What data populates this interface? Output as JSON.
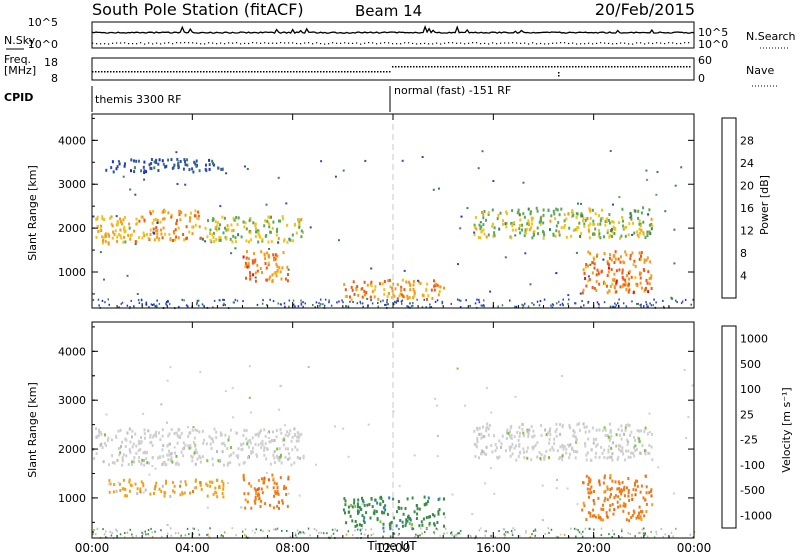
{
  "header": {
    "station": "South Pole Station (fitACF)",
    "beam": "Beam 14",
    "date": "20/Feb/2015"
  },
  "summary": {
    "nsky_label": "N.Sky",
    "nsearch_label": "N.Search",
    "freq_label_1": "Freq.",
    "freq_label_2": "[MHz]",
    "nave_label": "Nave",
    "cpid_label": "CPID",
    "left_top_ticks": [
      "10^5",
      "10^0"
    ],
    "right_top_ticks": [
      "10^5",
      "10^0"
    ],
    "freq_ticks": [
      "18",
      "8"
    ],
    "nave_ticks": [
      "60",
      "0"
    ],
    "cpid_segments": [
      "themis 3300 RF",
      "normal (fast) -151 RF"
    ]
  },
  "colors": {
    "power": [
      "#1a2cd6",
      "#2f4fa8",
      "#3f7f5a",
      "#58a85a",
      "#f2c21c",
      "#f59a1a",
      "#ee5a1a",
      "#e81010"
    ],
    "velocity": [
      "#1b3ea6",
      "#2f7fb0",
      "#3a8a48",
      "#7cc242",
      "#cfcfcf",
      "#bdbdbd",
      "#f0a21c",
      "#f07a1a",
      "#ee5a16",
      "#e81010"
    ],
    "grid": "#c8c8c8"
  },
  "chart_data": [
    {
      "type": "heatmap",
      "title": "",
      "xlabel": "",
      "ylabel": "Slant Range [km]",
      "x_ticks": [
        "00:00",
        "04:00",
        "08:00",
        "12:00",
        "16:00",
        "20:00",
        "00:00"
      ],
      "y_ticks": [
        1000,
        2000,
        3000,
        4000
      ],
      "ylim": [
        180,
        4600
      ],
      "colorbar": {
        "label": "Power [dB]",
        "ticks": [
          4,
          8,
          12,
          16,
          20,
          24,
          28
        ],
        "range": [
          0,
          32
        ]
      },
      "regions": [
        {
          "t": [
            0.0,
            2.2
          ],
          "r": [
            1650,
            2300
          ],
          "value": 20
        },
        {
          "t": [
            2.2,
            4.3
          ],
          "r": [
            1750,
            2450
          ],
          "value": 22
        },
        {
          "t": [
            4.3,
            8.4
          ],
          "r": [
            1700,
            2300
          ],
          "value": 16
        },
        {
          "t": [
            6.0,
            7.8
          ],
          "r": [
            800,
            1500
          ],
          "value": 24
        },
        {
          "t": [
            10.0,
            14.0
          ],
          "r": [
            400,
            850
          ],
          "value": 22
        },
        {
          "t": [
            15.2,
            22.3
          ],
          "r": [
            1800,
            2500
          ],
          "value": 16
        },
        {
          "t": [
            19.5,
            22.3
          ],
          "r": [
            550,
            1500
          ],
          "value": 24
        },
        {
          "t": [
            0.5,
            5.2
          ],
          "r": [
            3300,
            3600
          ],
          "value": 6
        }
      ]
    },
    {
      "type": "heatmap",
      "title": "",
      "xlabel": "Time UT",
      "ylabel": "Slant Range [km]",
      "x_ticks": [
        "00:00",
        "04:00",
        "08:00",
        "12:00",
        "16:00",
        "20:00",
        "00:00"
      ],
      "y_ticks": [
        1000,
        2000,
        3000,
        4000
      ],
      "ylim": [
        180,
        4600
      ],
      "colorbar": {
        "label": "Velocity [m s⁻¹]",
        "ticks": [
          1000,
          500,
          100,
          25,
          -25,
          -100,
          -500,
          -1000
        ]
      },
      "regions": [
        {
          "t": [
            0.0,
            8.4
          ],
          "r": [
            1700,
            2450
          ],
          "value": 0
        },
        {
          "t": [
            0.5,
            5.2
          ],
          "r": [
            1050,
            1400
          ],
          "value": -200
        },
        {
          "t": [
            6.0,
            7.8
          ],
          "r": [
            800,
            1500
          ],
          "value": -600
        },
        {
          "t": [
            10.0,
            14.0
          ],
          "r": [
            400,
            1050
          ],
          "value": 80
        },
        {
          "t": [
            15.2,
            22.3
          ],
          "r": [
            1800,
            2550
          ],
          "value": 0
        },
        {
          "t": [
            19.5,
            22.3
          ],
          "r": [
            550,
            1500
          ],
          "value": -600
        }
      ]
    }
  ]
}
